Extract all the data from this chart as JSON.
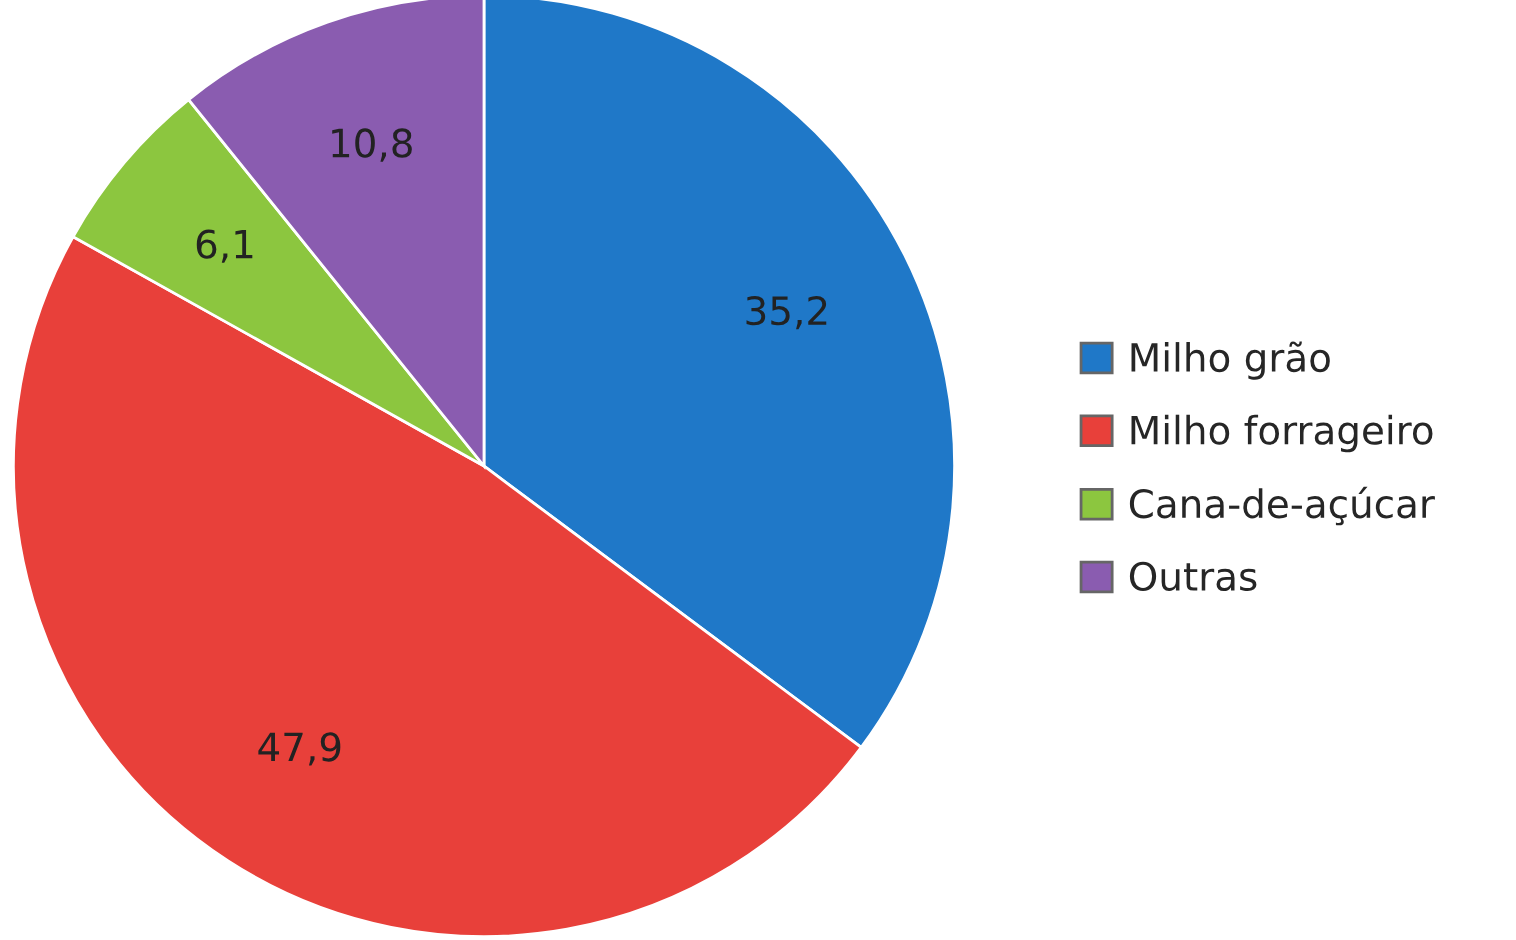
{
  "chart_data": {
    "type": "pie",
    "categories": [
      "Milho grão",
      "Milho forrageiro",
      "Cana-de-açúcar",
      "Outras"
    ],
    "values": [
      35.2,
      47.9,
      6.1,
      10.8
    ],
    "value_labels": [
      "35,2",
      "47,9",
      "6,1",
      "10,8"
    ],
    "colors": [
      "#1f78c8",
      "#e8403a",
      "#8cc63f",
      "#8a5cb0"
    ],
    "legend": "right"
  }
}
